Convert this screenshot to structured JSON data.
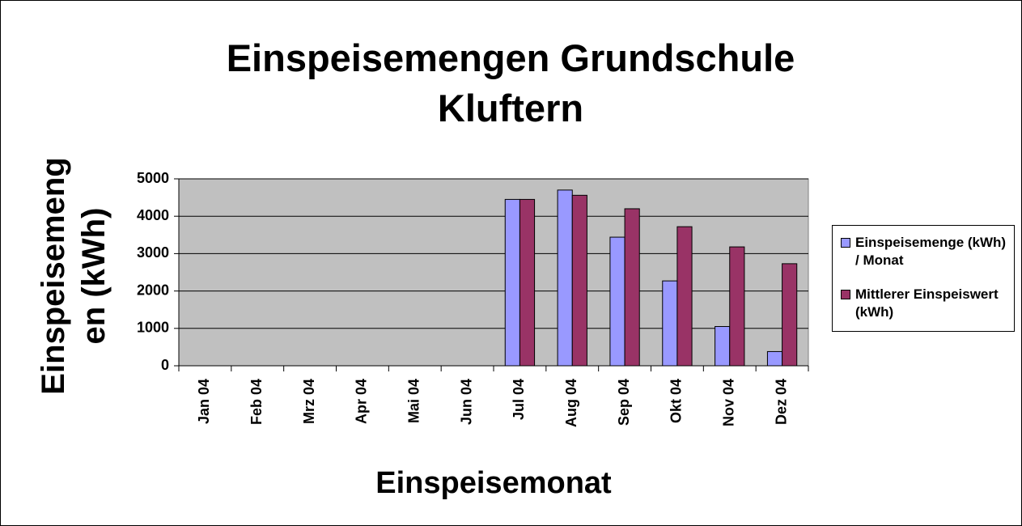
{
  "chart_data": {
    "type": "bar",
    "title": "Einspeisemengen Grundschule Kluftern",
    "x_label": "Einspeisemonat",
    "y_label": "Einspeisemengen (kWh)",
    "categories": [
      "Jan 04",
      "Feb 04",
      "Mrz 04",
      "Apr 04",
      "Mai 04",
      "Jun 04",
      "Jul 04",
      "Aug 04",
      "Sep 04",
      "Okt 04",
      "Nov 04",
      "Dez 04"
    ],
    "series": [
      {
        "name": "Einspeisemenge (kWh) / Monat",
        "color": "#9999ff",
        "values": [
          null,
          null,
          null,
          null,
          null,
          null,
          4450,
          4700,
          3440,
          2270,
          1050,
          380
        ]
      },
      {
        "name": "Mittlerer Einspeiswert (kWh)",
        "color": "#993366",
        "values": [
          null,
          null,
          null,
          null,
          null,
          null,
          4450,
          4560,
          4200,
          3720,
          3180,
          2730
        ]
      }
    ],
    "ylim": [
      0,
      5000
    ],
    "yticks": [
      0,
      1000,
      2000,
      3000,
      4000,
      5000
    ],
    "grid": true,
    "plot_background": "#c0c0c0",
    "legend": "right"
  }
}
